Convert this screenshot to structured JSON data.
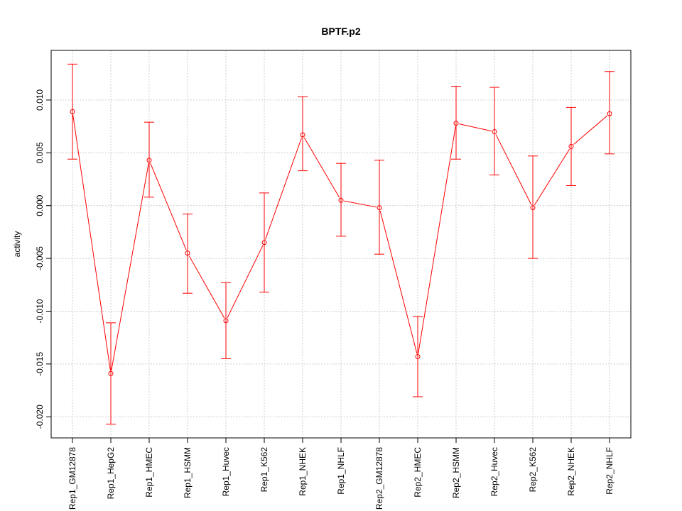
{
  "chart_data": {
    "type": "line",
    "title": "BPTF.p2",
    "xlabel": "",
    "ylabel": "activity",
    "ylim": [
      -0.022,
      0.0147
    ],
    "yticks": [
      0.01,
      0.005,
      0.0,
      -0.005,
      -0.01,
      -0.015,
      -0.02
    ],
    "ytick_labels": [
      "0.010",
      "0.005",
      "0.000",
      "-0.005",
      "-0.010",
      "-0.015",
      "-0.020"
    ],
    "grid": true,
    "series_color": "#ff0000",
    "grid_color": "#cccccc",
    "categories": [
      "Rep1_GM12878",
      "Rep1_HepG2",
      "Rep1_HMEC",
      "Rep1_HSMM",
      "Rep1_Huvec",
      "Rep1_K562",
      "Rep1_NHEK",
      "Rep1_NHLF",
      "Rep2_GM12878",
      "Rep2_HMEC",
      "Rep2_HSMM",
      "Rep2_Huvec",
      "Rep2_K562",
      "Rep2_NHEK",
      "Rep2_NHLF"
    ],
    "values": [
      0.0089,
      -0.0159,
      0.0043,
      -0.0045,
      -0.0109,
      -0.0035,
      0.0067,
      0.0005,
      -0.0002,
      -0.0143,
      0.0078,
      0.007,
      -0.0002,
      0.0056,
      0.0087
    ],
    "err_low": [
      0.0044,
      -0.0207,
      0.0008,
      -0.0083,
      -0.0145,
      -0.0082,
      0.0033,
      -0.0029,
      -0.0046,
      -0.0181,
      0.0044,
      0.0029,
      -0.005,
      0.0019,
      0.0049
    ],
    "err_high": [
      0.0134,
      -0.0111,
      0.0079,
      -0.0008,
      -0.0073,
      0.0012,
      0.0103,
      0.004,
      0.0043,
      -0.0105,
      0.0113,
      0.0112,
      0.0047,
      0.0093,
      0.0127
    ]
  }
}
